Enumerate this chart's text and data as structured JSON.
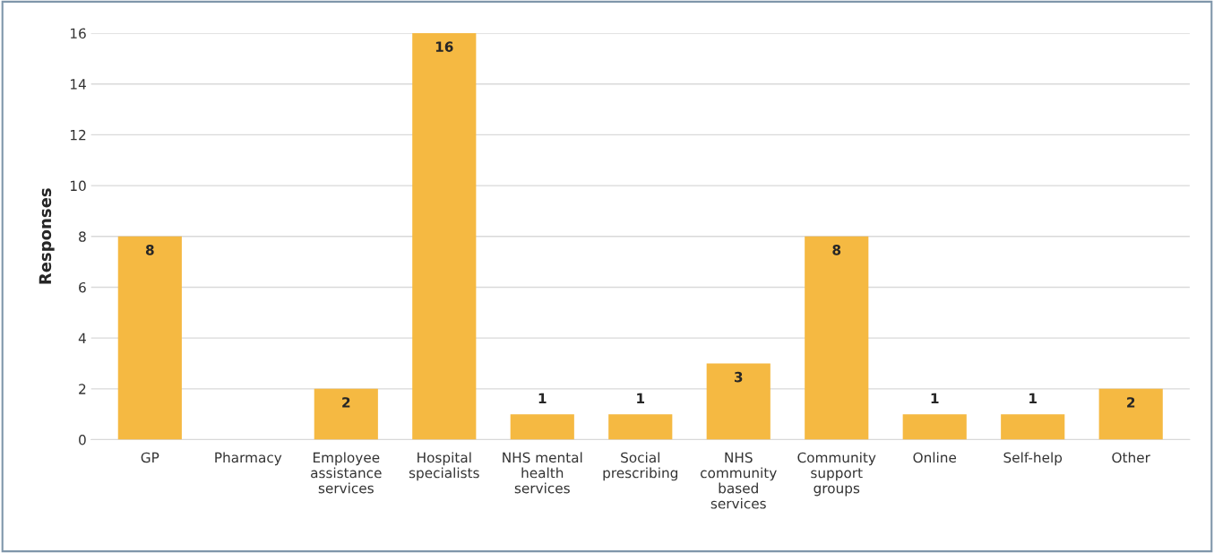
{
  "chart_data": {
    "type": "bar",
    "ylabel": "Responses",
    "categories": [
      "GP",
      "Pharmacy",
      "Employee\nassistance\nservices",
      "Hospital\nspecialists",
      "NHS mental\nhealth\nservices",
      "Social\nprescribing",
      "NHS\ncommunity\nbased\nservices",
      "Community\nsupport\ngroups",
      "Online",
      "Self-help",
      "Other"
    ],
    "values": [
      8,
      0,
      2,
      16,
      1,
      1,
      3,
      8,
      1,
      1,
      2
    ],
    "value_labels": [
      "8",
      null,
      "2",
      "16",
      "1",
      "1",
      "3",
      "8",
      "1",
      "1",
      "2"
    ],
    "color": "#f5b942",
    "ylim": [
      0,
      16
    ],
    "yticks": [
      0,
      2,
      4,
      6,
      8,
      10,
      12,
      14,
      16
    ],
    "grid": "y",
    "legend": false
  }
}
